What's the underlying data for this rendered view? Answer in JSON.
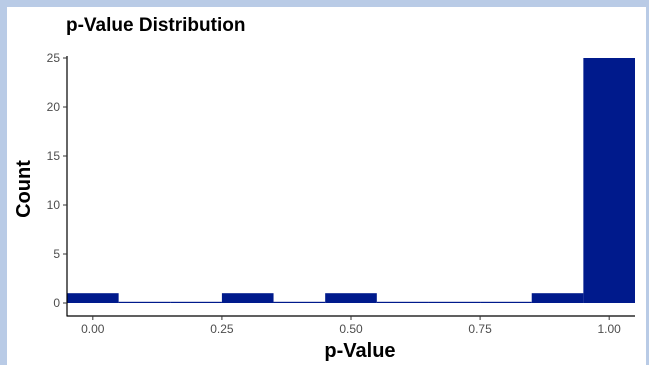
{
  "chart_data": {
    "type": "bar",
    "title": "p-Value Distribution",
    "xlabel": "p-Value",
    "ylabel": "Count",
    "bar_color": "#001a8c",
    "bin_width": 0.1,
    "bins": [
      {
        "x": 0.0,
        "count": 1
      },
      {
        "x": 0.1,
        "count": 0
      },
      {
        "x": 0.2,
        "count": 0
      },
      {
        "x": 0.3,
        "count": 1
      },
      {
        "x": 0.4,
        "count": 0
      },
      {
        "x": 0.5,
        "count": 1
      },
      {
        "x": 0.6,
        "count": 0
      },
      {
        "x": 0.7,
        "count": 0
      },
      {
        "x": 0.8,
        "count": 0
      },
      {
        "x": 0.9,
        "count": 1
      },
      {
        "x": 1.0,
        "count": 25
      }
    ],
    "xlim": [
      -0.05,
      1.05
    ],
    "ylim": [
      0,
      25
    ],
    "x_ticks": [
      {
        "value": 0.0,
        "label": "0.00"
      },
      {
        "value": 0.25,
        "label": "0.25"
      },
      {
        "value": 0.5,
        "label": "0.50"
      },
      {
        "value": 0.75,
        "label": "0.75"
      },
      {
        "value": 1.0,
        "label": "1.00"
      }
    ],
    "y_ticks": [
      {
        "value": 0,
        "label": "0"
      },
      {
        "value": 5,
        "label": "5"
      },
      {
        "value": 10,
        "label": "10"
      },
      {
        "value": 15,
        "label": "15"
      },
      {
        "value": 20,
        "label": "20"
      },
      {
        "value": 25,
        "label": "25"
      }
    ],
    "grid": false,
    "legend": "none"
  }
}
